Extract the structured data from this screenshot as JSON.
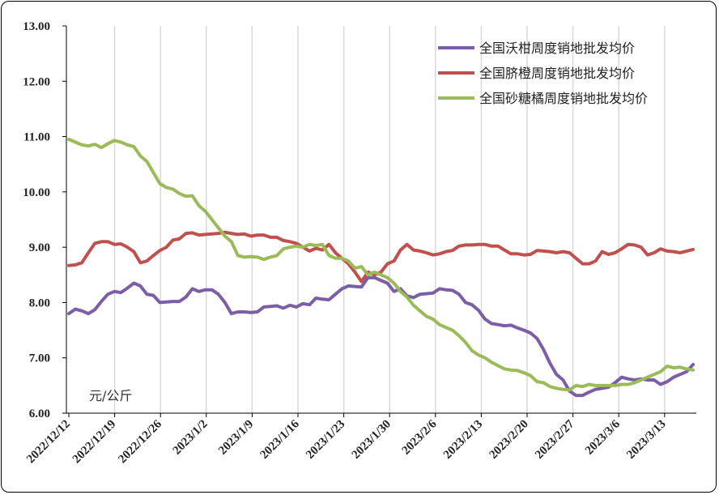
{
  "chart_data": {
    "type": "line",
    "unit": "元/公斤",
    "ylim": [
      6.0,
      13.0
    ],
    "yticks": [
      "6.00",
      "7.00",
      "8.00",
      "9.00",
      "10.00",
      "11.00",
      "12.00",
      "13.00"
    ],
    "xticks": [
      "2022/12/12",
      "2022/12/19",
      "2022/12/26",
      "2023/1/2",
      "2023/1/9",
      "2023/1/16",
      "2023/1/23",
      "2023/1/30",
      "2023/2/6",
      "2023/2/13",
      "2023/2/20",
      "2023/2/27",
      "2023/3/6",
      "2023/3/13"
    ],
    "grid": "vertical",
    "legend_position": "top-right",
    "series": [
      {
        "name": "全国沃柑周度销地批发均价",
        "color": "#7b5ea7",
        "values": [
          7.8,
          7.88,
          7.85,
          7.8,
          7.87,
          8.02,
          8.15,
          8.2,
          8.18,
          8.26,
          8.35,
          8.3,
          8.15,
          8.13,
          8.0,
          8.01,
          8.02,
          8.02,
          8.1,
          8.25,
          8.2,
          8.23,
          8.23,
          8.15,
          8.0,
          7.8,
          7.83,
          7.83,
          7.82,
          7.83,
          7.92,
          7.93,
          7.94,
          7.9,
          7.95,
          7.92,
          7.98,
          7.96,
          8.08,
          8.06,
          8.05,
          8.15,
          8.25,
          8.3,
          8.29,
          8.28,
          8.45,
          8.45,
          8.4,
          8.35,
          8.2,
          8.25,
          8.12,
          8.09,
          8.15,
          8.16,
          8.17,
          8.25,
          8.23,
          8.22,
          8.15,
          8.0,
          7.96,
          7.86,
          7.7,
          7.62,
          7.6,
          7.58,
          7.59,
          7.54,
          7.5,
          7.45,
          7.35,
          7.15,
          6.9,
          6.7,
          6.6,
          6.4,
          6.32,
          6.32,
          6.38,
          6.43,
          6.45,
          6.47,
          6.55,
          6.65,
          6.62,
          6.6,
          6.62,
          6.6,
          6.6,
          6.52,
          6.57,
          6.65,
          6.7,
          6.75,
          6.88
        ]
      },
      {
        "name": "全国脐橙周度销地批发均价",
        "color": "#c0504d",
        "values": [
          8.67,
          8.68,
          8.72,
          8.9,
          9.07,
          9.1,
          9.1,
          9.05,
          9.06,
          9.0,
          8.92,
          8.72,
          8.75,
          8.85,
          8.94,
          9.0,
          9.13,
          9.15,
          9.25,
          9.26,
          9.22,
          9.23,
          9.24,
          9.25,
          9.27,
          9.25,
          9.23,
          9.24,
          9.2,
          9.22,
          9.22,
          9.18,
          9.18,
          9.12,
          9.1,
          9.07,
          9.0,
          8.93,
          8.98,
          8.95,
          9.05,
          8.9,
          8.8,
          8.7,
          8.55,
          8.38,
          8.55,
          8.5,
          8.55,
          8.7,
          8.75,
          8.95,
          9.05,
          8.95,
          8.93,
          8.9,
          8.86,
          8.88,
          8.92,
          8.94,
          9.02,
          9.04,
          9.04,
          9.05,
          9.05,
          9.02,
          9.02,
          8.95,
          8.88,
          8.88,
          8.86,
          8.87,
          8.94,
          8.93,
          8.92,
          8.9,
          8.92,
          8.9,
          8.8,
          8.7,
          8.7,
          8.75,
          8.92,
          8.87,
          8.9,
          8.97,
          9.05,
          9.04,
          9.0,
          8.86,
          8.9,
          8.97,
          8.93,
          8.92,
          8.9,
          8.93,
          8.96
        ]
      },
      {
        "name": "全国砂糖橘周度销地批发均价",
        "color": "#9bbb59",
        "values": [
          10.95,
          10.9,
          10.85,
          10.83,
          10.86,
          10.8,
          10.87,
          10.93,
          10.9,
          10.85,
          10.82,
          10.65,
          10.55,
          10.35,
          10.15,
          10.08,
          10.05,
          9.97,
          9.92,
          9.93,
          9.75,
          9.65,
          9.5,
          9.35,
          9.2,
          9.1,
          8.85,
          8.82,
          8.83,
          8.82,
          8.78,
          8.82,
          8.85,
          8.97,
          9.0,
          9.02,
          9.0,
          9.05,
          9.03,
          9.05,
          8.85,
          8.8,
          8.8,
          8.75,
          8.62,
          8.65,
          8.5,
          8.55,
          8.5,
          8.45,
          8.35,
          8.2,
          8.1,
          7.95,
          7.85,
          7.75,
          7.7,
          7.6,
          7.55,
          7.5,
          7.4,
          7.28,
          7.13,
          7.05,
          7.0,
          6.92,
          6.86,
          6.8,
          6.78,
          6.77,
          6.73,
          6.68,
          6.57,
          6.55,
          6.48,
          6.45,
          6.43,
          6.42,
          6.5,
          6.48,
          6.52,
          6.5,
          6.5,
          6.5,
          6.5,
          6.52,
          6.52,
          6.55,
          6.6,
          6.65,
          6.7,
          6.75,
          6.85,
          6.82,
          6.83,
          6.8,
          6.78
        ]
      }
    ]
  }
}
